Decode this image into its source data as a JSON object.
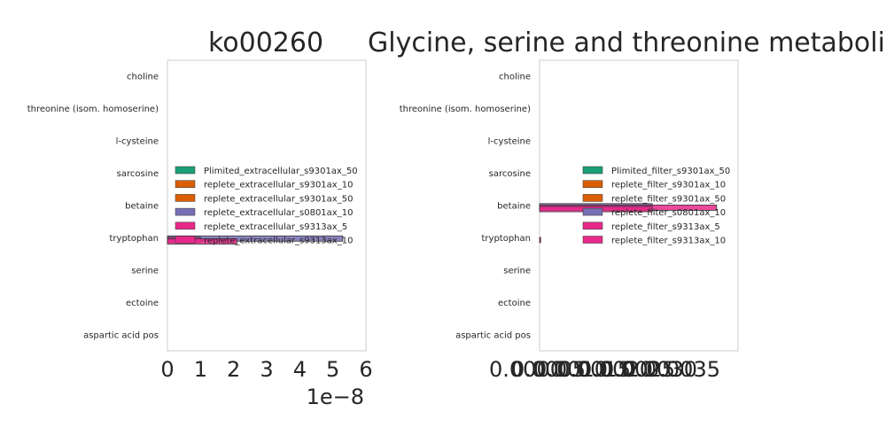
{
  "chart_data": [
    {
      "type": "bar",
      "orientation": "horizontal",
      "title": "ko00260",
      "categories": [
        "choline",
        "threonine (isom. homoserine)",
        "l-cysteine",
        "sarcosine",
        "betaine",
        "tryptophan",
        "serine",
        "ectoine",
        "aspartic acid pos"
      ],
      "xlim": [
        0,
        6e-08
      ],
      "x_ticks": [
        "0",
        "1",
        "2",
        "3",
        "4",
        "5",
        "6"
      ],
      "x_offset_label": "1e−8",
      "legend_position": "center",
      "grid": false,
      "series": [
        {
          "name": "Plimited_extracellular_s9301ax_50",
          "color": "#1b9e77",
          "values": [
            0,
            0,
            0,
            0,
            0,
            0,
            0,
            0,
            0
          ]
        },
        {
          "name": "replete_extracellular_s9301ax_10",
          "color": "#d95f02",
          "values": [
            0,
            0,
            0,
            0,
            0,
            0,
            0,
            0,
            0
          ]
        },
        {
          "name": "replete_extracellular_s9301ax_50",
          "color": "#d95f02",
          "values": [
            0,
            0,
            0,
            0,
            0,
            0,
            0,
            0,
            0
          ]
        },
        {
          "name": "replete_extracellular_s0801ax_10",
          "color": "#7570b3",
          "values": [
            0,
            0,
            0,
            0,
            0,
            5.3e-08,
            0,
            0,
            0
          ]
        },
        {
          "name": "replete_extracellular_s9313ax_5",
          "color": "#e7298a",
          "values": [
            0,
            0,
            0,
            0,
            0,
            1e-08,
            0,
            0,
            0
          ]
        },
        {
          "name": "replete_extracellular_s9313ax_10",
          "color": "#e7298a",
          "values": [
            0,
            0,
            0,
            0,
            0,
            2.1e-08,
            0,
            0,
            0
          ]
        }
      ]
    },
    {
      "type": "bar",
      "orientation": "horizontal",
      "title": "Glycine, serine and threonine metabolism",
      "categories": [
        "choline",
        "threonine (isom. homoserine)",
        "l-cysteine",
        "sarcosine",
        "betaine",
        "tryptophan",
        "serine",
        "ectoine",
        "aspartic acid pos"
      ],
      "xlim": [
        0,
        0.0037
      ],
      "x_ticks": [
        "0.0000",
        "0.0005",
        "0.0010",
        "0.0015",
        "0.0020",
        "0.0025",
        "0.0030",
        "0.0035"
      ],
      "x_ticks_rendered": "0.0000000500000500200250535",
      "legend_position": "center-right",
      "grid": false,
      "series": [
        {
          "name": "Plimited_filter_s9301ax_50",
          "color": "#1b9e77",
          "values": [
            0,
            0,
            0,
            0,
            0,
            0,
            0,
            0,
            0
          ]
        },
        {
          "name": "replete_filter_s9301ax_10",
          "color": "#d95f02",
          "values": [
            0,
            0,
            0,
            0,
            0,
            0,
            0,
            0,
            0
          ]
        },
        {
          "name": "replete_filter_s9301ax_50",
          "color": "#d95f02",
          "values": [
            0,
            0,
            0,
            0,
            0,
            0,
            0,
            0,
            0
          ]
        },
        {
          "name": "replete_filter_s0801ax_10",
          "color": "#7570b3",
          "values": [
            0,
            0,
            0,
            0,
            0.0021,
            0,
            0,
            0,
            0
          ]
        },
        {
          "name": "replete_filter_s9313ax_5",
          "color": "#e7298a",
          "values": [
            0,
            0,
            0,
            0,
            0.0033,
            2e-05,
            0,
            0,
            0
          ]
        },
        {
          "name": "replete_filter_s9313ax_10",
          "color": "#e7298a",
          "values": [
            0,
            0,
            0,
            0,
            0.0021,
            0,
            0,
            0,
            0
          ]
        }
      ]
    }
  ]
}
